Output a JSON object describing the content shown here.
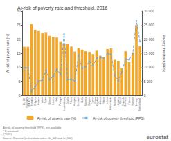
{
  "chart_data": {
    "type": "bar",
    "title": "At-risk of poverty rate and threshold, 2016",
    "categories": [
      "EU-28 *",
      "Euro area\n(EA-19) *",
      "Romania",
      "Bulgaria",
      "Lithuania",
      "Latvia",
      "Spain",
      "Greece",
      "Estonia",
      "Italy",
      "Portugal",
      "Luxembourg",
      "Croatia",
      "Poland",
      "Hungary",
      "Denmark",
      "Malta",
      "Slovenia",
      "Belgium",
      "Cyprus",
      "United\nKingdom",
      "Austria",
      "France",
      "Ireland",
      "Netherlands",
      "Slovakia",
      "Lithuania",
      "Czech\nRepublic",
      "Germany",
      "Finland",
      "Sweden",
      "Norway *",
      "Switzerland *"
    ],
    "series": [
      {
        "name": "At-risk of poverty rate (%)",
        "type": "bar",
        "color": "#f5a623",
        "values": [
          17.3,
          17.3,
          25.3,
          23.4,
          22.9,
          22.1,
          22.3,
          21.2,
          20.8,
          20.6,
          19.0,
          18.2,
          18.4,
          17.4,
          15.6,
          16.8,
          16.3,
          15.7,
          15.5,
          14.7,
          15.9,
          14.1,
          13.6,
          16.5,
          16.7,
          12.7,
          12.3,
          9.7,
          15.7,
          11.8,
          15.3,
          25.0,
          17.5
        ]
      },
      {
        "name": "At-risk of poverty threshold (PPS)",
        "type": "line",
        "axis": "y2",
        "color": "#70a5d1",
        "marker": "diamond",
        "line_style": "dashed",
        "values": [
          9800,
          9800,
          1400,
          3100,
          5100,
          5400,
          8900,
          5600,
          6800,
          9200,
          7400,
          21800,
          5600,
          5700,
          5100,
          14400,
          9600,
          10200,
          12100,
          10600,
          13200,
          13600,
          13100,
          15000,
          14500,
          7000,
          5100,
          8300,
          13000,
          12600,
          14800,
          26500,
          19200
        ]
      }
    ],
    "ylabel": "At-risk of poverty rate (%)",
    "y2label": "Poverty threshold (PPS)",
    "ylim": [
      0,
      30
    ],
    "yticks": [
      0,
      5,
      10,
      15,
      20,
      25,
      30
    ],
    "y2lim": [
      0,
      30000
    ],
    "y2ticks": [
      0,
      {
        "value": 5000,
        "label": "5 000"
      },
      {
        "value": 10000,
        "label": "10 000"
      },
      {
        "value": 15000,
        "label": "15 000"
      },
      {
        "value": 20000,
        "label": "20 000"
      },
      {
        "value": 25000,
        "label": "25 000"
      },
      {
        "value": 30000,
        "label": "30 000"
      }
    ],
    "legend": "bottom",
    "grid": false,
    "annotations": [
      "At-risk-of-poverty threshold (PPS), not available\n* Provisional\nˆ(2015)\nSource: Eurostat (online data codes: ilc_li01 and ilc_li02)",
      "eurostat"
    ]
  }
}
